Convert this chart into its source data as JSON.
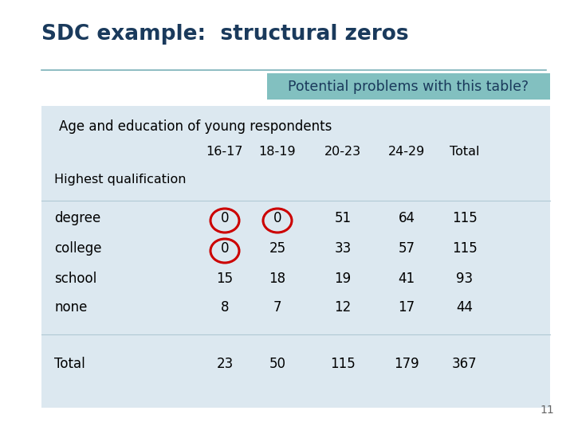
{
  "title": "SDC example:  structural zeros",
  "title_color": "#1a3a5c",
  "title_fontsize": 19,
  "highlight_text": "Potential problems with this table?",
  "highlight_bg": "#82c0c0",
  "highlight_text_color": "#1a3a5c",
  "table_title": "Age and education of young respondents",
  "col_headers": [
    "16-17",
    "18-19",
    "20-23",
    "24-29",
    "Total"
  ],
  "row_label_qual": "Highest qualification",
  "row_labels": [
    "degree",
    "college",
    "school",
    "none",
    "Total"
  ],
  "table_data": [
    [
      "0",
      "0",
      "51",
      "64",
      "115"
    ],
    [
      "0",
      "25",
      "33",
      "57",
      "115"
    ],
    [
      "15",
      "18",
      "19",
      "41",
      "93"
    ],
    [
      "8",
      "7",
      "12",
      "17",
      "44"
    ],
    [
      "23",
      "50",
      "115",
      "179",
      "367"
    ]
  ],
  "circle_color": "#cc0000",
  "table_bg": "#dce8f0",
  "slide_number": "11",
  "background_color": "#ffffff",
  "line_color": "#7ab0b8",
  "sep_line_color": "#b0c8d4"
}
